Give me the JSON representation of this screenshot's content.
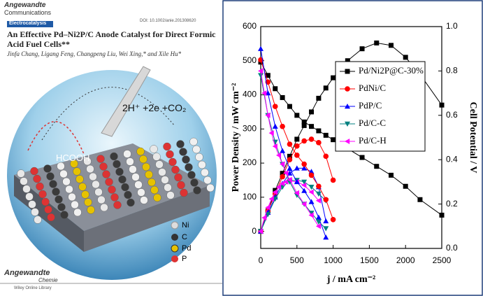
{
  "cover": {
    "journal": "Angewandte",
    "section": "Communications",
    "topic": "Electrocatalysis",
    "doi": "DOI: 10.1002/anie.201308620",
    "title": "An Effective Pd–Ni2P/C Anode Catalyst for Direct Formic Acid Fuel Cells**",
    "authors": "Jinfa Chang, Ligang Feng, Changpeng Liu, Wei Xing,* and Xile Hu*",
    "reaction": "2H⁺ +2e +CO₂",
    "reactant": "HCOOH",
    "elements": [
      "Ni",
      "C",
      "Pd",
      "P"
    ],
    "footer_journal": "Angewandte",
    "footer_subtitle": "Chemie",
    "footer_line": "Wiley Online Library"
  },
  "chart_data": {
    "type": "line",
    "ylabel": "Power Density / mW cm⁻²",
    "y2label": "Cell Potential / V",
    "xlabel": "j / mA cm⁻²",
    "xlim": [
      0,
      2500
    ],
    "xticks": [
      0,
      500,
      1000,
      1500,
      2000,
      2500
    ],
    "ylim": [
      -50,
      600
    ],
    "yticks": [
      0,
      100,
      200,
      300,
      400,
      500,
      600
    ],
    "y2lim": [
      0,
      1.0
    ],
    "y2ticks": [
      {
        "value": 0,
        "label": "0.0"
      },
      {
        "value": 0.2,
        "label": "0.2"
      },
      {
        "value": 0.4,
        "label": "0.4"
      },
      {
        "value": 0.6,
        "label": "0.6"
      },
      {
        "value": 0.8,
        "label": "0.8"
      },
      {
        "value": 1.0,
        "label": "1.0"
      }
    ],
    "legend": "upper right",
    "series": [
      {
        "name": "Pd/Ni2P@C-30%",
        "color": "#000000",
        "marker": "square",
        "x": [
          0,
          100,
          200,
          300,
          400,
          500,
          600,
          700,
          800,
          900,
          1000,
          1200,
          1400,
          1600,
          1800,
          2000,
          2200,
          2500
        ],
        "values": [
          0,
          60,
          120,
          170,
          220,
          270,
          310,
          350,
          390,
          420,
          450,
          500,
          535,
          552,
          545,
          510,
          460,
          370
        ]
      },
      {
        "name": "PdNi/C",
        "color": "#ff0000",
        "marker": "circle",
        "x": [
          0,
          100,
          200,
          300,
          400,
          500,
          600,
          700,
          800,
          900,
          1000
        ],
        "values": [
          0,
          60,
          110,
          160,
          210,
          250,
          265,
          270,
          260,
          220,
          150
        ]
      },
      {
        "name": "PdP/C",
        "color": "#0000ff",
        "marker": "triangle-up",
        "x": [
          0,
          100,
          200,
          300,
          400,
          500,
          600,
          700,
          800,
          900
        ],
        "values": [
          0,
          55,
          100,
          140,
          170,
          185,
          185,
          175,
          130,
          30
        ]
      },
      {
        "name": "Pd/C-C",
        "color": "#008080",
        "marker": "triangle-down",
        "x": [
          0,
          100,
          200,
          300,
          400,
          500,
          600,
          700,
          800,
          900
        ],
        "values": [
          0,
          50,
          95,
          130,
          148,
          150,
          145,
          130,
          110,
          90
        ]
      },
      {
        "name": "Pd/C-H",
        "color": "#ff00ff",
        "marker": "triangle-left",
        "x": [
          0,
          50,
          100,
          150,
          200,
          250,
          300,
          350,
          400,
          500,
          600,
          700,
          800
        ],
        "values": [
          0,
          40,
          70,
          95,
          115,
          130,
          140,
          145,
          148,
          145,
          135,
          115,
          90
        ]
      },
      {
        "name": "Pd/Ni2P@C-30%",
        "axis": "y2",
        "color": "#000000",
        "marker": "square",
        "x": [
          0,
          100,
          200,
          300,
          400,
          500,
          600,
          700,
          800,
          900,
          1000,
          1200,
          1400,
          1600,
          1800,
          2000,
          2200,
          2500
        ],
        "values": [
          0.84,
          0.78,
          0.72,
          0.68,
          0.64,
          0.6,
          0.57,
          0.55,
          0.53,
          0.51,
          0.49,
          0.45,
          0.41,
          0.37,
          0.33,
          0.28,
          0.22,
          0.15
        ]
      },
      {
        "name": "PdNi/C",
        "axis": "y2",
        "color": "#ff0000",
        "marker": "circle",
        "x": [
          0,
          100,
          200,
          300,
          400,
          500,
          600,
          700,
          800,
          900,
          1000
        ],
        "values": [
          0.85,
          0.75,
          0.64,
          0.55,
          0.47,
          0.42,
          0.38,
          0.33,
          0.28,
          0.22,
          0.13
        ]
      },
      {
        "name": "PdP/C",
        "axis": "y2",
        "color": "#0000ff",
        "marker": "triangle-up",
        "x": [
          0,
          100,
          200,
          300,
          400,
          500,
          600,
          700,
          800,
          900
        ],
        "values": [
          0.9,
          0.7,
          0.55,
          0.44,
          0.36,
          0.3,
          0.26,
          0.21,
          0.14,
          0.05
        ]
      },
      {
        "name": "Pd/C-C",
        "axis": "y2",
        "color": "#008080",
        "marker": "triangle-down",
        "x": [
          0,
          100,
          200,
          300,
          400,
          500,
          600,
          700,
          800,
          900
        ],
        "values": [
          0.78,
          0.6,
          0.48,
          0.38,
          0.3,
          0.24,
          0.2,
          0.16,
          0.12,
          0.09
        ]
      },
      {
        "name": "Pd/C-H",
        "axis": "y2",
        "color": "#ff00ff",
        "marker": "triangle-left",
        "x": [
          0,
          50,
          100,
          150,
          200,
          250,
          300,
          350,
          400,
          500,
          600,
          700,
          800
        ],
        "values": [
          0.8,
          0.7,
          0.6,
          0.52,
          0.46,
          0.42,
          0.38,
          0.34,
          0.31,
          0.25,
          0.2,
          0.15,
          0.1
        ]
      }
    ]
  }
}
